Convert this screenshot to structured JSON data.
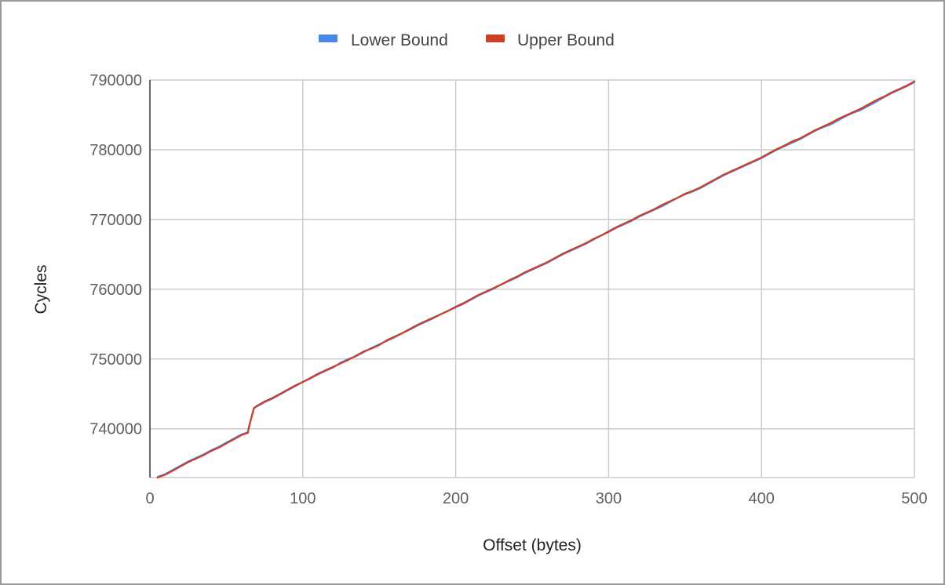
{
  "chart_data": {
    "type": "line",
    "title": "",
    "xlabel": "Offset (bytes)",
    "ylabel": "Cycles",
    "xlim": [
      0,
      500
    ],
    "ylim": [
      733000,
      790000
    ],
    "x_ticks": [
      0,
      100,
      200,
      300,
      400,
      500
    ],
    "y_ticks": [
      740000,
      750000,
      760000,
      770000,
      780000,
      790000
    ],
    "x_tick_labels": [
      "0",
      "100",
      "200",
      "300",
      "400",
      "500"
    ],
    "y_tick_labels": [
      "740000",
      "750000",
      "760000",
      "770000",
      "780000",
      "790000"
    ],
    "grid": true,
    "legend": "top",
    "x": [
      5,
      10,
      15,
      20,
      25,
      30,
      35,
      40,
      45,
      50,
      55,
      60,
      64,
      65,
      68,
      70,
      75,
      80,
      85,
      90,
      95,
      100,
      105,
      110,
      115,
      120,
      125,
      130,
      135,
      140,
      145,
      150,
      155,
      160,
      165,
      170,
      175,
      180,
      185,
      190,
      195,
      200,
      205,
      210,
      215,
      220,
      225,
      230,
      235,
      240,
      245,
      250,
      255,
      260,
      265,
      270,
      275,
      280,
      285,
      290,
      295,
      300,
      305,
      310,
      315,
      320,
      325,
      330,
      335,
      340,
      345,
      350,
      355,
      360,
      365,
      370,
      375,
      380,
      385,
      390,
      395,
      400,
      405,
      410,
      415,
      420,
      425,
      430,
      435,
      440,
      445,
      450,
      455,
      460,
      465,
      470,
      475,
      480,
      485,
      490,
      495,
      500
    ],
    "series": [
      {
        "name": "Lower Bound",
        "color": "#4a86e8",
        "values": [
          733100,
          733500,
          734100,
          734700,
          735300,
          735800,
          736300,
          736900,
          737400,
          738000,
          738600,
          739200,
          739500,
          740500,
          743000,
          743200,
          743800,
          744300,
          744900,
          745500,
          746100,
          746700,
          747200,
          747800,
          748300,
          748800,
          749500,
          750000,
          750400,
          751000,
          751600,
          752100,
          752600,
          753100,
          753700,
          754200,
          754800,
          755300,
          755800,
          756400,
          756900,
          757400,
          757900,
          758500,
          759100,
          759600,
          760100,
          760700,
          761200,
          761700,
          762300,
          762800,
          763300,
          763800,
          764400,
          765000,
          765500,
          766000,
          766500,
          767100,
          767700,
          768200,
          768800,
          769300,
          769800,
          770400,
          770900,
          771400,
          771900,
          772500,
          773100,
          773600,
          774000,
          774500,
          775100,
          775700,
          776300,
          776800,
          777300,
          777800,
          778300,
          778800,
          779400,
          780000,
          780500,
          781000,
          781500,
          782100,
          782700,
          783200,
          783600,
          784200,
          784800,
          785300,
          785700,
          786300,
          786900,
          787500,
          788100,
          788600,
          789100,
          789700
        ]
      },
      {
        "name": "Upper Bound",
        "color": "#cc4125",
        "values": [
          733000,
          733400,
          734000,
          734600,
          735200,
          735700,
          736200,
          736800,
          737300,
          737900,
          738500,
          739100,
          739400,
          740400,
          742900,
          743300,
          743900,
          744400,
          745000,
          745600,
          746200,
          746700,
          747300,
          747900,
          748400,
          748900,
          749400,
          749900,
          750500,
          751100,
          751500,
          752000,
          752700,
          753200,
          753700,
          754300,
          754900,
          755400,
          755900,
          756400,
          756900,
          757500,
          758000,
          758600,
          759200,
          759700,
          760200,
          760700,
          761300,
          761800,
          762400,
          762900,
          763400,
          763900,
          764500,
          765100,
          765600,
          766100,
          766600,
          767200,
          767700,
          768300,
          768900,
          769400,
          769900,
          770500,
          771000,
          771500,
          772100,
          772600,
          773100,
          773700,
          774100,
          774600,
          775200,
          775800,
          776400,
          776900,
          777400,
          777900,
          778400,
          778900,
          779500,
          780100,
          780600,
          781200,
          781600,
          782200,
          782800,
          783300,
          783800,
          784400,
          784900,
          785400,
          785900,
          786500,
          787100,
          787600,
          788200,
          788700,
          789200,
          789800
        ]
      }
    ]
  }
}
